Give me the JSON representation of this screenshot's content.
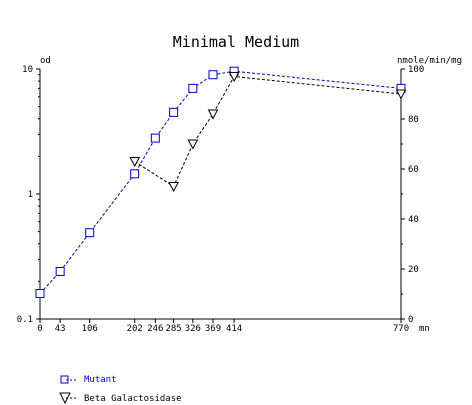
{
  "chart_data": {
    "type": "line",
    "title": "Minimal Medium",
    "x": {
      "unit": "mn",
      "ticks": [
        0,
        43,
        106,
        202,
        246,
        285,
        326,
        369,
        414,
        770
      ],
      "tick_labels": [
        "0",
        "43",
        "106",
        "202",
        "246",
        "285",
        "326",
        "369",
        "414",
        "770"
      ],
      "range": [
        0,
        770
      ]
    },
    "y_left": {
      "label": "od",
      "scale": "log",
      "range": [
        0.1,
        10
      ],
      "ticks": [
        0.1,
        1,
        10
      ],
      "tick_labels": [
        "0.1",
        "1",
        "10"
      ]
    },
    "y_right": {
      "label": "nmole/min/mg",
      "scale": "linear",
      "range": [
        0,
        100
      ],
      "ticks": [
        0,
        20,
        40,
        60,
        80,
        100
      ],
      "tick_labels": [
        "0",
        "20",
        "40",
        "60",
        "80",
        "100"
      ]
    },
    "series": [
      {
        "name": "Mutant",
        "axis": "left",
        "color": "#0000cc",
        "marker": "square",
        "x": [
          0,
          43,
          106,
          202,
          246,
          285,
          326,
          369,
          414,
          770
        ],
        "y": [
          0.16,
          0.24,
          0.49,
          1.45,
          2.8,
          4.5,
          7.0,
          9.0,
          9.6,
          7.0
        ]
      },
      {
        "name": "Beta Galactosidase",
        "axis": "right",
        "color": "#000000",
        "marker": "triangle-down",
        "x": [
          202,
          285,
          326,
          369,
          414,
          770
        ],
        "y": [
          63,
          53,
          70,
          82,
          97,
          90
        ]
      }
    ],
    "legend": "bottom-left",
    "grid": false
  }
}
